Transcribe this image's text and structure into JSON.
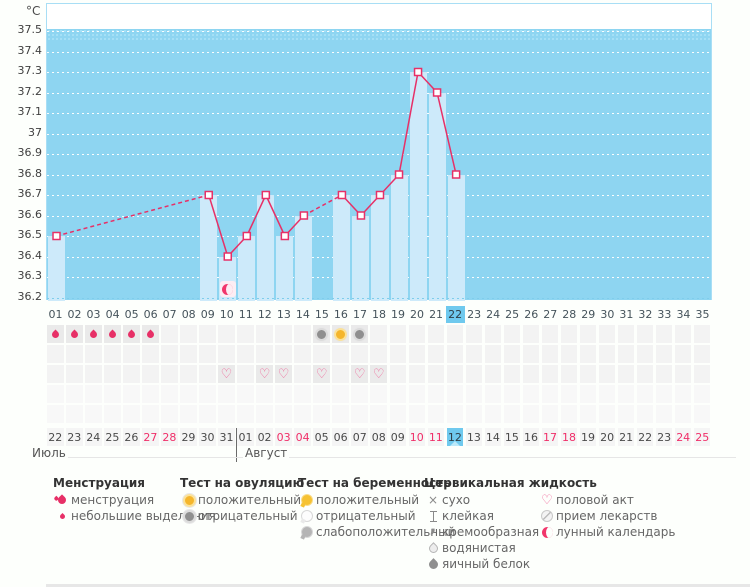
{
  "chart_data": {
    "type": "line",
    "unit": "°C",
    "ylim": [
      36.2,
      37.5
    ],
    "y_ticks": [
      "37.5",
      "37.4",
      "37.3",
      "37.2",
      "37.1",
      "37",
      "36.9",
      "36.8",
      "36.7",
      "36.6",
      "36.5",
      "36.4",
      "36.3",
      "36.2"
    ],
    "x_labels": [
      "01",
      "02",
      "03",
      "04",
      "05",
      "06",
      "07",
      "08",
      "09",
      "10",
      "11",
      "12",
      "13",
      "14",
      "15",
      "16",
      "17",
      "18",
      "19",
      "20",
      "21",
      "22",
      "23",
      "24",
      "25",
      "26",
      "27",
      "28",
      "29",
      "30",
      "31",
      "32",
      "33",
      "34",
      "35"
    ],
    "temperatures": [
      {
        "day": 1,
        "temp": 36.5
      },
      {
        "day": 9,
        "temp": 36.7
      },
      {
        "day": 10,
        "temp": 36.4
      },
      {
        "day": 11,
        "temp": 36.5
      },
      {
        "day": 12,
        "temp": 36.7
      },
      {
        "day": 13,
        "temp": 36.5
      },
      {
        "day": 14,
        "temp": 36.6
      },
      {
        "day": 16,
        "temp": 36.7
      },
      {
        "day": 17,
        "temp": 36.6
      },
      {
        "day": 18,
        "temp": 36.7
      },
      {
        "day": 19,
        "temp": 36.8
      },
      {
        "day": 20,
        "temp": 37.3
      },
      {
        "day": 21,
        "temp": 37.2
      },
      {
        "day": 22,
        "temp": 36.8
      }
    ],
    "today_cycle_day": 22,
    "grid": "horizontal white dotted",
    "legend_position": "bottom"
  },
  "events": {
    "menstruation_days": [
      1,
      2,
      3,
      4,
      5,
      6
    ],
    "ovulation_tests": [
      {
        "day": 15,
        "result": "отрицательный"
      },
      {
        "day": 16,
        "result": "положительный"
      },
      {
        "day": 17,
        "result": "отрицательный"
      }
    ],
    "intercourse_days": [
      10,
      12,
      13,
      15,
      17,
      18
    ],
    "lunar_calendar_chart_days": [
      10
    ]
  },
  "calendar": {
    "months": [
      {
        "name": "Июль",
        "dates": [
          "22",
          "23",
          "24",
          "25",
          "26",
          "27",
          "28",
          "29",
          "30",
          "31"
        ],
        "weekend_dates": [
          "27",
          "28"
        ]
      },
      {
        "name": "Август",
        "dates": [
          "01",
          "02",
          "03",
          "04",
          "05",
          "06",
          "07",
          "08",
          "09",
          "10",
          "11",
          "12",
          "13",
          "14",
          "15",
          "16",
          "17",
          "18",
          "19",
          "20",
          "21",
          "22",
          "23",
          "24",
          "25"
        ],
        "weekend_dates": [
          "03",
          "04",
          "10",
          "11",
          "17",
          "18",
          "24",
          "25"
        ]
      }
    ],
    "today": {
      "month": "Август",
      "date": "12"
    }
  },
  "legend": {
    "sections": [
      {
        "title": "Менструация",
        "items": [
          {
            "icon": "menstruation-drops",
            "label": "менструация"
          },
          {
            "icon": "spotting-drop",
            "label": "небольшие выделения"
          }
        ]
      },
      {
        "title": "Тест на овуляцию",
        "items": [
          {
            "icon": "ovulation-positive",
            "label": "положительный"
          },
          {
            "icon": "ovulation-negative",
            "label": "отрицательный"
          }
        ]
      },
      {
        "title": "Тест на беременность",
        "items": [
          {
            "icon": "pregnancy-positive",
            "label": "положительный"
          },
          {
            "icon": "pregnancy-negative",
            "label": "отрицательный"
          },
          {
            "icon": "pregnancy-weak-positive",
            "label": "слабоположительный"
          }
        ]
      },
      {
        "title": "Цервикальная жидкость",
        "items": [
          {
            "icon": "dry-cross",
            "label": "сухо"
          },
          {
            "icon": "sticky-ibeam",
            "label": "клейкая"
          },
          {
            "icon": "creamy-comma",
            "label": "кремообразная"
          },
          {
            "icon": "watery-drop",
            "label": "водянистая"
          },
          {
            "icon": "egg-white-drop",
            "label": "яичный белок"
          }
        ]
      },
      {
        "title": "",
        "items": [
          {
            "icon": "intercourse-heart",
            "label": "половой акт"
          },
          {
            "icon": "medication-pill",
            "label": "прием лекарств"
          },
          {
            "icon": "lunar-calendar-moon",
            "label": "лунный календарь"
          }
        ]
      }
    ]
  },
  "colors": {
    "plot_background": "#8ed5f1",
    "bar": "#cdeafa",
    "line": "#e73067",
    "plot_border": "#a8def5",
    "today_highlight": "#6fc9ee",
    "weekend_red": "#f02e68",
    "heart_pink": "#f0669a"
  }
}
